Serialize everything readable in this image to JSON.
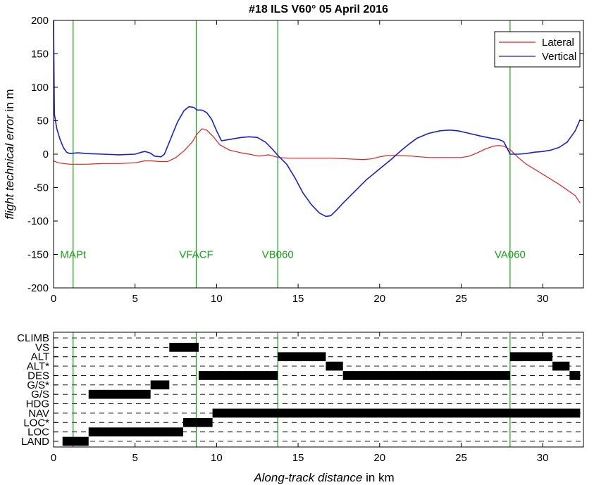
{
  "chart_data": [
    {
      "type": "line",
      "title": "#18 ILS V60°  05 April 2016",
      "ylabel_italic": "flight technical error",
      "ylabel_rest": " in m",
      "xlim": [
        0,
        32.5
      ],
      "ylim": [
        -200,
        200
      ],
      "xticks": [
        0,
        5,
        10,
        15,
        20,
        25,
        30
      ],
      "yticks": [
        -200,
        -150,
        -100,
        -50,
        0,
        50,
        100,
        150,
        200
      ],
      "grid": false,
      "legend_position": "top-right",
      "waypoints": [
        {
          "x": 1.2,
          "label": "MAPt"
        },
        {
          "x": 8.75,
          "label": "VFACF"
        },
        {
          "x": 13.75,
          "label": "VB060"
        },
        {
          "x": 28.0,
          "label": "VA060"
        }
      ],
      "waypoint_color": "#1aa01a",
      "series": [
        {
          "name": "Lateral",
          "color": "#e0201c",
          "x": [
            0,
            0.3,
            0.6,
            1,
            2,
            3,
            4,
            5,
            5.6,
            6,
            6.5,
            7,
            7.5,
            8,
            8.5,
            8.8,
            9.1,
            9.4,
            9.8,
            10.2,
            10.8,
            11.5,
            12,
            12.6,
            13.2,
            13.8,
            14.5,
            15,
            16,
            17,
            18,
            19,
            19.5,
            20,
            20.5,
            21,
            22,
            23,
            24,
            25,
            25.5,
            26,
            26.5,
            27,
            27.3,
            27.6,
            28,
            28.5,
            29,
            30,
            31,
            32,
            32.3
          ],
          "y": [
            -10,
            -13,
            -14,
            -15,
            -15,
            -14,
            -14,
            -13,
            -10,
            -10,
            -11,
            -11,
            -5,
            5,
            18,
            30,
            38,
            36,
            26,
            14,
            6,
            2,
            0,
            -3,
            -1,
            -5,
            -6,
            -6,
            -6,
            -6,
            -7,
            -8,
            -7,
            -4,
            -2,
            -2,
            -3,
            -5,
            -5,
            -5,
            -3,
            2,
            8,
            12,
            13,
            12,
            7,
            -5,
            -15,
            -30,
            -45,
            -62,
            -73
          ]
        },
        {
          "name": "Vertical",
          "color": "#1a22cc",
          "x": [
            0,
            0.05,
            0.2,
            0.4,
            0.6,
            0.8,
            1.0,
            1.5,
            2,
            3,
            4,
            5,
            5.4,
            5.6,
            5.9,
            6.2,
            6.6,
            6.8,
            7.0,
            7.3,
            7.6,
            8.0,
            8.3,
            8.6,
            8.8,
            9.1,
            9.4,
            9.7,
            10.0,
            10.3,
            10.8,
            11.5,
            12.0,
            12.5,
            13.0,
            13.4,
            13.8,
            14.3,
            14.8,
            15.3,
            15.8,
            16.3,
            16.7,
            17.0,
            17.3,
            17.8,
            18.5,
            19.2,
            20.0,
            20.7,
            21.3,
            21.8,
            22.3,
            23.0,
            23.7,
            24.3,
            24.8,
            25.5,
            26.2,
            26.8,
            27.3,
            27.6,
            27.8,
            28.0,
            28.5,
            29.0,
            29.5,
            30.0,
            30.5,
            31.0,
            31.5,
            32.0,
            32.3
          ],
          "y": [
            200,
            60,
            38,
            22,
            10,
            3,
            1,
            2,
            1,
            0,
            -1,
            0,
            3,
            4,
            2,
            -3,
            -4,
            0,
            12,
            30,
            48,
            65,
            71,
            70,
            66,
            66,
            62,
            52,
            35,
            20,
            22,
            25,
            26,
            25,
            18,
            8,
            -3,
            -15,
            -35,
            -58,
            -75,
            -88,
            -93,
            -92,
            -85,
            -72,
            -55,
            -38,
            -22,
            -8,
            5,
            15,
            24,
            31,
            35,
            36,
            35,
            31,
            27,
            24,
            22,
            19,
            10,
            0,
            0,
            1,
            3,
            4,
            6,
            10,
            18,
            35,
            52
          ]
        }
      ]
    },
    {
      "type": "timeline",
      "xlabel_italic": "Along-track distance",
      "xlabel_rest": " in km",
      "xlim": [
        0,
        32.5
      ],
      "xticks": [
        0,
        5,
        10,
        15,
        20,
        25,
        30
      ],
      "modes": [
        "CLIMB",
        "VS",
        "ALT",
        "ALT*",
        "DES",
        "G/S*",
        "G/S",
        "HDG",
        "NAV",
        "LOC*",
        "LOC",
        "LAND"
      ],
      "segments": [
        {
          "mode": "LAND",
          "start": 0.55,
          "end": 2.15
        },
        {
          "mode": "LOC",
          "start": 2.15,
          "end": 7.95
        },
        {
          "mode": "LOC*",
          "start": 7.95,
          "end": 9.75
        },
        {
          "mode": "NAV",
          "start": 9.75,
          "end": 32.3
        },
        {
          "mode": "G/S",
          "start": 2.15,
          "end": 5.95
        },
        {
          "mode": "G/S*",
          "start": 5.95,
          "end": 7.1
        },
        {
          "mode": "VS",
          "start": 7.1,
          "end": 8.9
        },
        {
          "mode": "DES",
          "start": 8.9,
          "end": 13.75
        },
        {
          "mode": "ALT",
          "start": 13.75,
          "end": 16.7
        },
        {
          "mode": "ALT*",
          "start": 16.7,
          "end": 17.75
        },
        {
          "mode": "DES",
          "start": 17.75,
          "end": 28.0
        },
        {
          "mode": "ALT",
          "start": 28.0,
          "end": 30.6
        },
        {
          "mode": "ALT*",
          "start": 30.6,
          "end": 31.65
        },
        {
          "mode": "DES",
          "start": 31.65,
          "end": 32.3
        }
      ]
    }
  ]
}
